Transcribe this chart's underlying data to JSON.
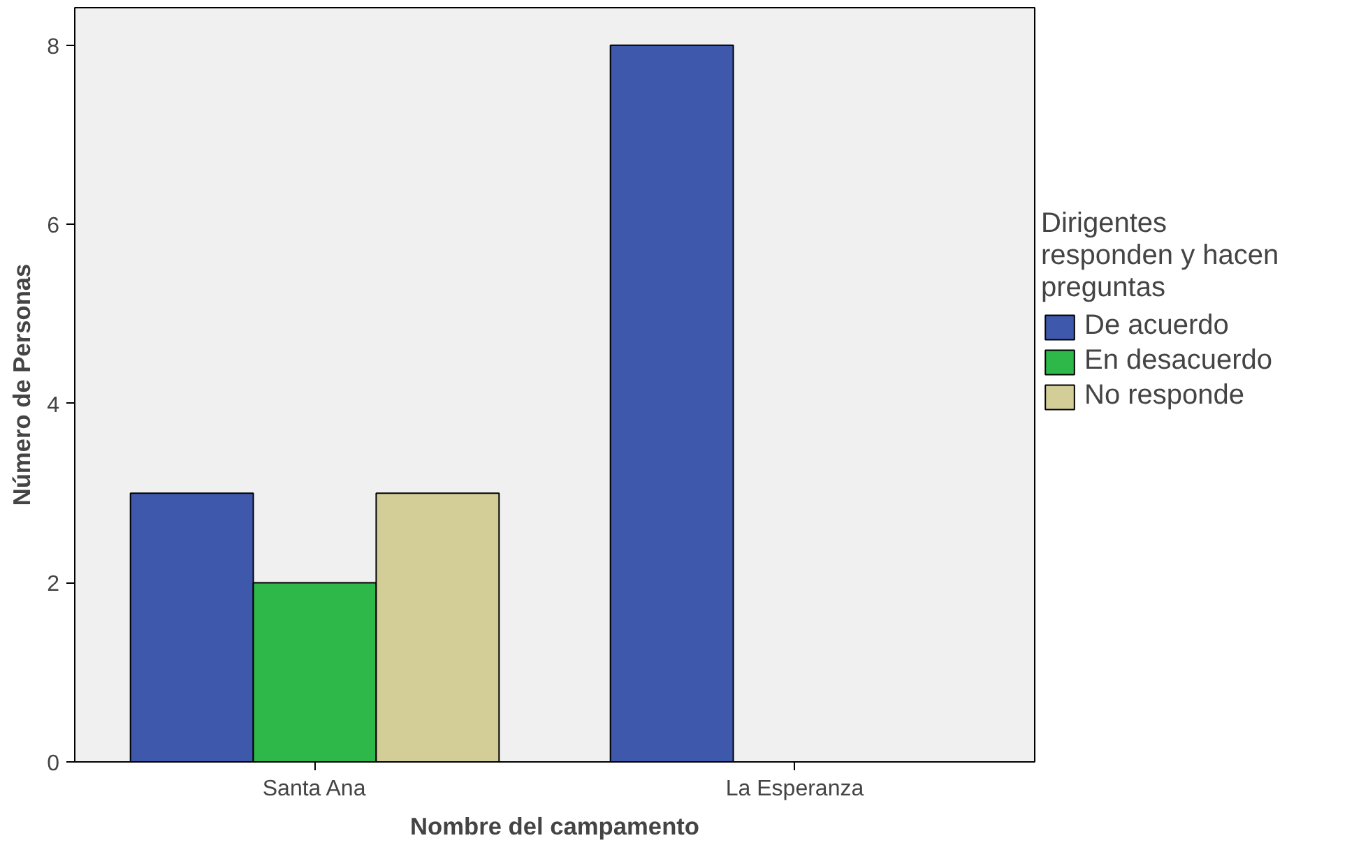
{
  "chart_data": {
    "type": "bar",
    "xlabel": "Nombre del campamento",
    "ylabel": "Número de Personas",
    "legend_title": "Dirigentes responden y hacen preguntas",
    "categories": [
      "Santa Ana",
      "La Esperanza"
    ],
    "series": [
      {
        "name": "De acuerdo",
        "color": "#3e58ac",
        "values": [
          3,
          8
        ]
      },
      {
        "name": "En desacuerdo",
        "color": "#2fb84a",
        "values": [
          2,
          null
        ]
      },
      {
        "name": "No responde",
        "color": "#d3ce98",
        "values": [
          3,
          null
        ]
      }
    ],
    "ylim": [
      0,
      8.42
    ],
    "yticks": [
      0,
      2,
      4,
      6,
      8
    ],
    "grid": false,
    "legend": "right"
  }
}
